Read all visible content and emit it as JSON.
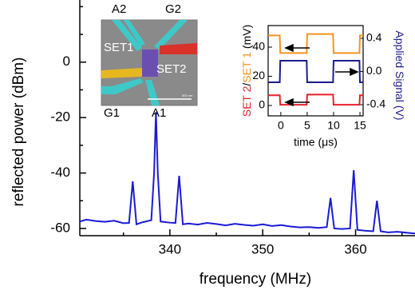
{
  "chart_data": [
    {
      "type": "line",
      "xlabel": "frequency (MHz)",
      "ylabel": "reflected power (dBm)",
      "x": [
        330.3,
        331,
        332,
        333,
        334,
        335,
        335.6,
        336.0,
        336.4,
        337,
        338.0,
        338.3,
        338.5,
        338.7,
        339.0,
        340,
        340.6,
        341.0,
        341.4,
        342,
        343,
        344,
        345,
        346,
        347,
        348,
        349,
        350,
        351,
        352,
        353,
        354,
        355,
        356,
        356.9,
        357.3,
        357.7,
        358.5,
        359.4,
        359.8,
        360.2,
        361,
        361.9,
        362.3,
        362.7,
        363.5,
        364.5,
        366.4
      ],
      "series": [
        {
          "color": "#1a1ad6",
          "values": [
            -57.5,
            -56.8,
            -57.3,
            -57.6,
            -57.2,
            -58.1,
            -58.0,
            -43,
            -58.5,
            -57.8,
            -57.0,
            -40,
            -18,
            -40,
            -57.5,
            -57.9,
            -58.0,
            -41,
            -58.5,
            -58.2,
            -58.6,
            -58.0,
            -58.4,
            -58.9,
            -58.3,
            -58.7,
            -59.0,
            -58.5,
            -59.1,
            -58.8,
            -59.3,
            -59.6,
            -59.5,
            -59.8,
            -59.5,
            -49,
            -60.0,
            -60.2,
            -60.0,
            -39,
            -60.5,
            -60.8,
            -61.0,
            -50,
            -61.0,
            -61.4,
            -61.2,
            -61.8
          ]
        }
      ],
      "xlim": [
        330.3,
        366.4
      ],
      "xticks": [
        340,
        350,
        360
      ],
      "xminorticks": [
        335,
        345,
        355,
        365
      ],
      "ylim": [
        -62.6,
        22.4
      ],
      "yticks": [
        -60,
        -40,
        -20,
        0
      ],
      "yminorticks": [
        -50,
        -30,
        -10,
        10,
        20
      ]
    },
    {
      "type": "line",
      "xlabel": "time (μs)",
      "ylabel": {
        "separator": "/",
        "unit": "(mV)"
      },
      "y2label": {
        "unit": "(V)"
      },
      "x": [
        -2.4,
        -0.2,
        -0.1,
        4.9,
        5.0,
        9.9,
        10.0,
        14.9,
        15.0,
        15.6
      ],
      "series": [
        {
          "name": "SET 2",
          "color": "#e8202a",
          "values": [
            7,
            7,
            0.5,
            0.5,
            7.5,
            7.5,
            0.5,
            0.5,
            7,
            7
          ]
        },
        {
          "name": "SET 1",
          "color": "#f7941d",
          "values": [
            48,
            48,
            36,
            36,
            49,
            49,
            36,
            36,
            48,
            48
          ]
        },
        {
          "name": "Applied Signal",
          "color": "#1c1c8c",
          "axis": "y2",
          "values": [
            -0.13,
            -0.13,
            0.13,
            0.13,
            -0.13,
            -0.13,
            0.13,
            0.13,
            -0.13,
            -0.13
          ]
        }
      ],
      "xlim": [
        -2.4,
        15.6
      ],
      "xticks": [
        0,
        5,
        10,
        15
      ],
      "ylim": [
        -7.1,
        54.8
      ],
      "yticks": [
        0,
        20,
        40
      ],
      "y2lim": [
        -0.535,
        0.554
      ],
      "y2ticks": [
        -0.4,
        {
          "value": 0,
          "label": "0.0"
        },
        0.4
      ]
    }
  ],
  "image_inset": {
    "labels": [
      "A2",
      "G2",
      "SET1",
      "SET2",
      "G1",
      "A1"
    ],
    "scale_bar": "500 nm"
  }
}
